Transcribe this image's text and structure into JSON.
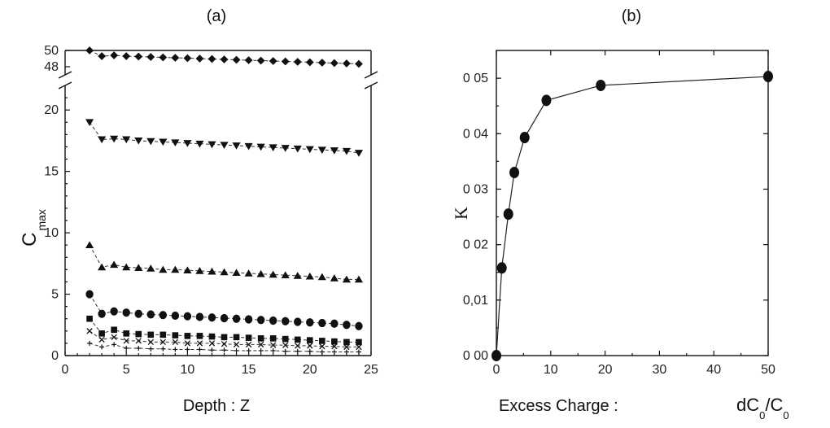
{
  "chart_data": [
    {
      "type": "scatter",
      "panel_label": "(a)",
      "xlabel": "Depth : Z",
      "ylabel_main": "C",
      "ylabel_sub": "max",
      "xlim": [
        0,
        25
      ],
      "x_ticks": [
        "0",
        "5",
        "10",
        "15",
        "20",
        "25"
      ],
      "y_ticks_lower": [
        "0",
        "5",
        "10",
        "15",
        "20"
      ],
      "y_ticks_upper": [
        "48",
        "50"
      ],
      "axis_break": true,
      "series": [
        {
          "marker": "diamond",
          "x": [
            2,
            3,
            4,
            5,
            6,
            7,
            8,
            9,
            10,
            11,
            12,
            13,
            14,
            15,
            16,
            17,
            18,
            19,
            20,
            21,
            22,
            23,
            24
          ],
          "y": [
            50,
            49.3,
            49.4,
            49.3,
            49.25,
            49.2,
            49.15,
            49.1,
            49.05,
            49.0,
            48.95,
            48.9,
            48.85,
            48.8,
            48.75,
            48.7,
            48.65,
            48.6,
            48.55,
            48.5,
            48.45,
            48.4,
            48.35
          ]
        },
        {
          "marker": "triangle-down",
          "x": [
            2,
            3,
            4,
            5,
            6,
            7,
            8,
            9,
            10,
            11,
            12,
            13,
            14,
            15,
            16,
            17,
            18,
            19,
            20,
            21,
            22,
            23,
            24
          ],
          "y": [
            19,
            17.6,
            17.65,
            17.6,
            17.5,
            17.45,
            17.4,
            17.35,
            17.3,
            17.25,
            17.2,
            17.15,
            17.1,
            17.05,
            17.0,
            16.95,
            16.9,
            16.85,
            16.8,
            16.75,
            16.7,
            16.65,
            16.5
          ]
        },
        {
          "marker": "triangle-up",
          "x": [
            2,
            3,
            4,
            5,
            6,
            7,
            8,
            9,
            10,
            11,
            12,
            13,
            14,
            15,
            16,
            17,
            18,
            19,
            20,
            21,
            22,
            23,
            24
          ],
          "y": [
            9,
            7.2,
            7.4,
            7.2,
            7.15,
            7.1,
            7.0,
            7.0,
            6.95,
            6.9,
            6.85,
            6.8,
            6.75,
            6.7,
            6.65,
            6.6,
            6.55,
            6.5,
            6.45,
            6.4,
            6.3,
            6.2,
            6.2
          ]
        },
        {
          "marker": "circle",
          "x": [
            2,
            3,
            4,
            5,
            6,
            7,
            8,
            9,
            10,
            11,
            12,
            13,
            14,
            15,
            16,
            17,
            18,
            19,
            20,
            21,
            22,
            23,
            24
          ],
          "y": [
            5,
            3.4,
            3.6,
            3.5,
            3.4,
            3.35,
            3.3,
            3.25,
            3.2,
            3.15,
            3.1,
            3.05,
            3.0,
            2.95,
            2.9,
            2.85,
            2.8,
            2.75,
            2.7,
            2.65,
            2.6,
            2.5,
            2.4
          ]
        },
        {
          "marker": "square",
          "x": [
            2,
            3,
            4,
            5,
            6,
            7,
            8,
            9,
            10,
            11,
            12,
            13,
            14,
            15,
            16,
            17,
            18,
            19,
            20,
            21,
            22,
            23,
            24
          ],
          "y": [
            3,
            1.8,
            2.1,
            1.8,
            1.75,
            1.7,
            1.7,
            1.65,
            1.6,
            1.6,
            1.55,
            1.5,
            1.5,
            1.45,
            1.4,
            1.4,
            1.35,
            1.3,
            1.25,
            1.2,
            1.15,
            1.1,
            1.1
          ]
        },
        {
          "marker": "x",
          "x": [
            2,
            3,
            4,
            5,
            6,
            7,
            8,
            9,
            10,
            11,
            12,
            13,
            14,
            15,
            16,
            17,
            18,
            19,
            20,
            21,
            22,
            23,
            24
          ],
          "y": [
            2,
            1.3,
            1.5,
            1.2,
            1.2,
            1.1,
            1.1,
            1.1,
            1.0,
            1.0,
            1.0,
            0.95,
            0.9,
            0.9,
            0.9,
            0.85,
            0.85,
            0.8,
            0.8,
            0.75,
            0.75,
            0.7,
            0.7
          ]
        },
        {
          "marker": "plus",
          "x": [
            2,
            3,
            4,
            5,
            6,
            7,
            8,
            9,
            10,
            11,
            12,
            13,
            14,
            15,
            16,
            17,
            18,
            19,
            20,
            21,
            22,
            23,
            24
          ],
          "y": [
            1,
            0.7,
            0.9,
            0.6,
            0.6,
            0.55,
            0.55,
            0.5,
            0.5,
            0.5,
            0.45,
            0.45,
            0.4,
            0.4,
            0.4,
            0.4,
            0.35,
            0.35,
            0.35,
            0.3,
            0.3,
            0.3,
            0.3
          ]
        }
      ]
    },
    {
      "type": "line",
      "panel_label": "(b)",
      "xlabel": "Excess Charge :",
      "xlabel_formula": "dC",
      "xlabel_sub1": "0",
      "xlabel_slash": "/C",
      "xlabel_sub2": "0",
      "ylabel": "K",
      "xlim": [
        0,
        50
      ],
      "ylim": [
        0,
        0.055
      ],
      "x_ticks": [
        "0",
        "10",
        "20",
        "30",
        "40",
        "50"
      ],
      "y_ticks": [
        "0 00",
        "0,01",
        "0 02",
        "0 03",
        "0 04",
        "0 05"
      ],
      "series": [
        {
          "marker": "circle",
          "x": [
            0,
            1,
            2.2,
            3.3,
            5.2,
            9.2,
            19.2,
            50
          ],
          "y": [
            0,
            0.0158,
            0.0255,
            0.033,
            0.0393,
            0.046,
            0.0487,
            0.0503
          ]
        }
      ]
    }
  ]
}
